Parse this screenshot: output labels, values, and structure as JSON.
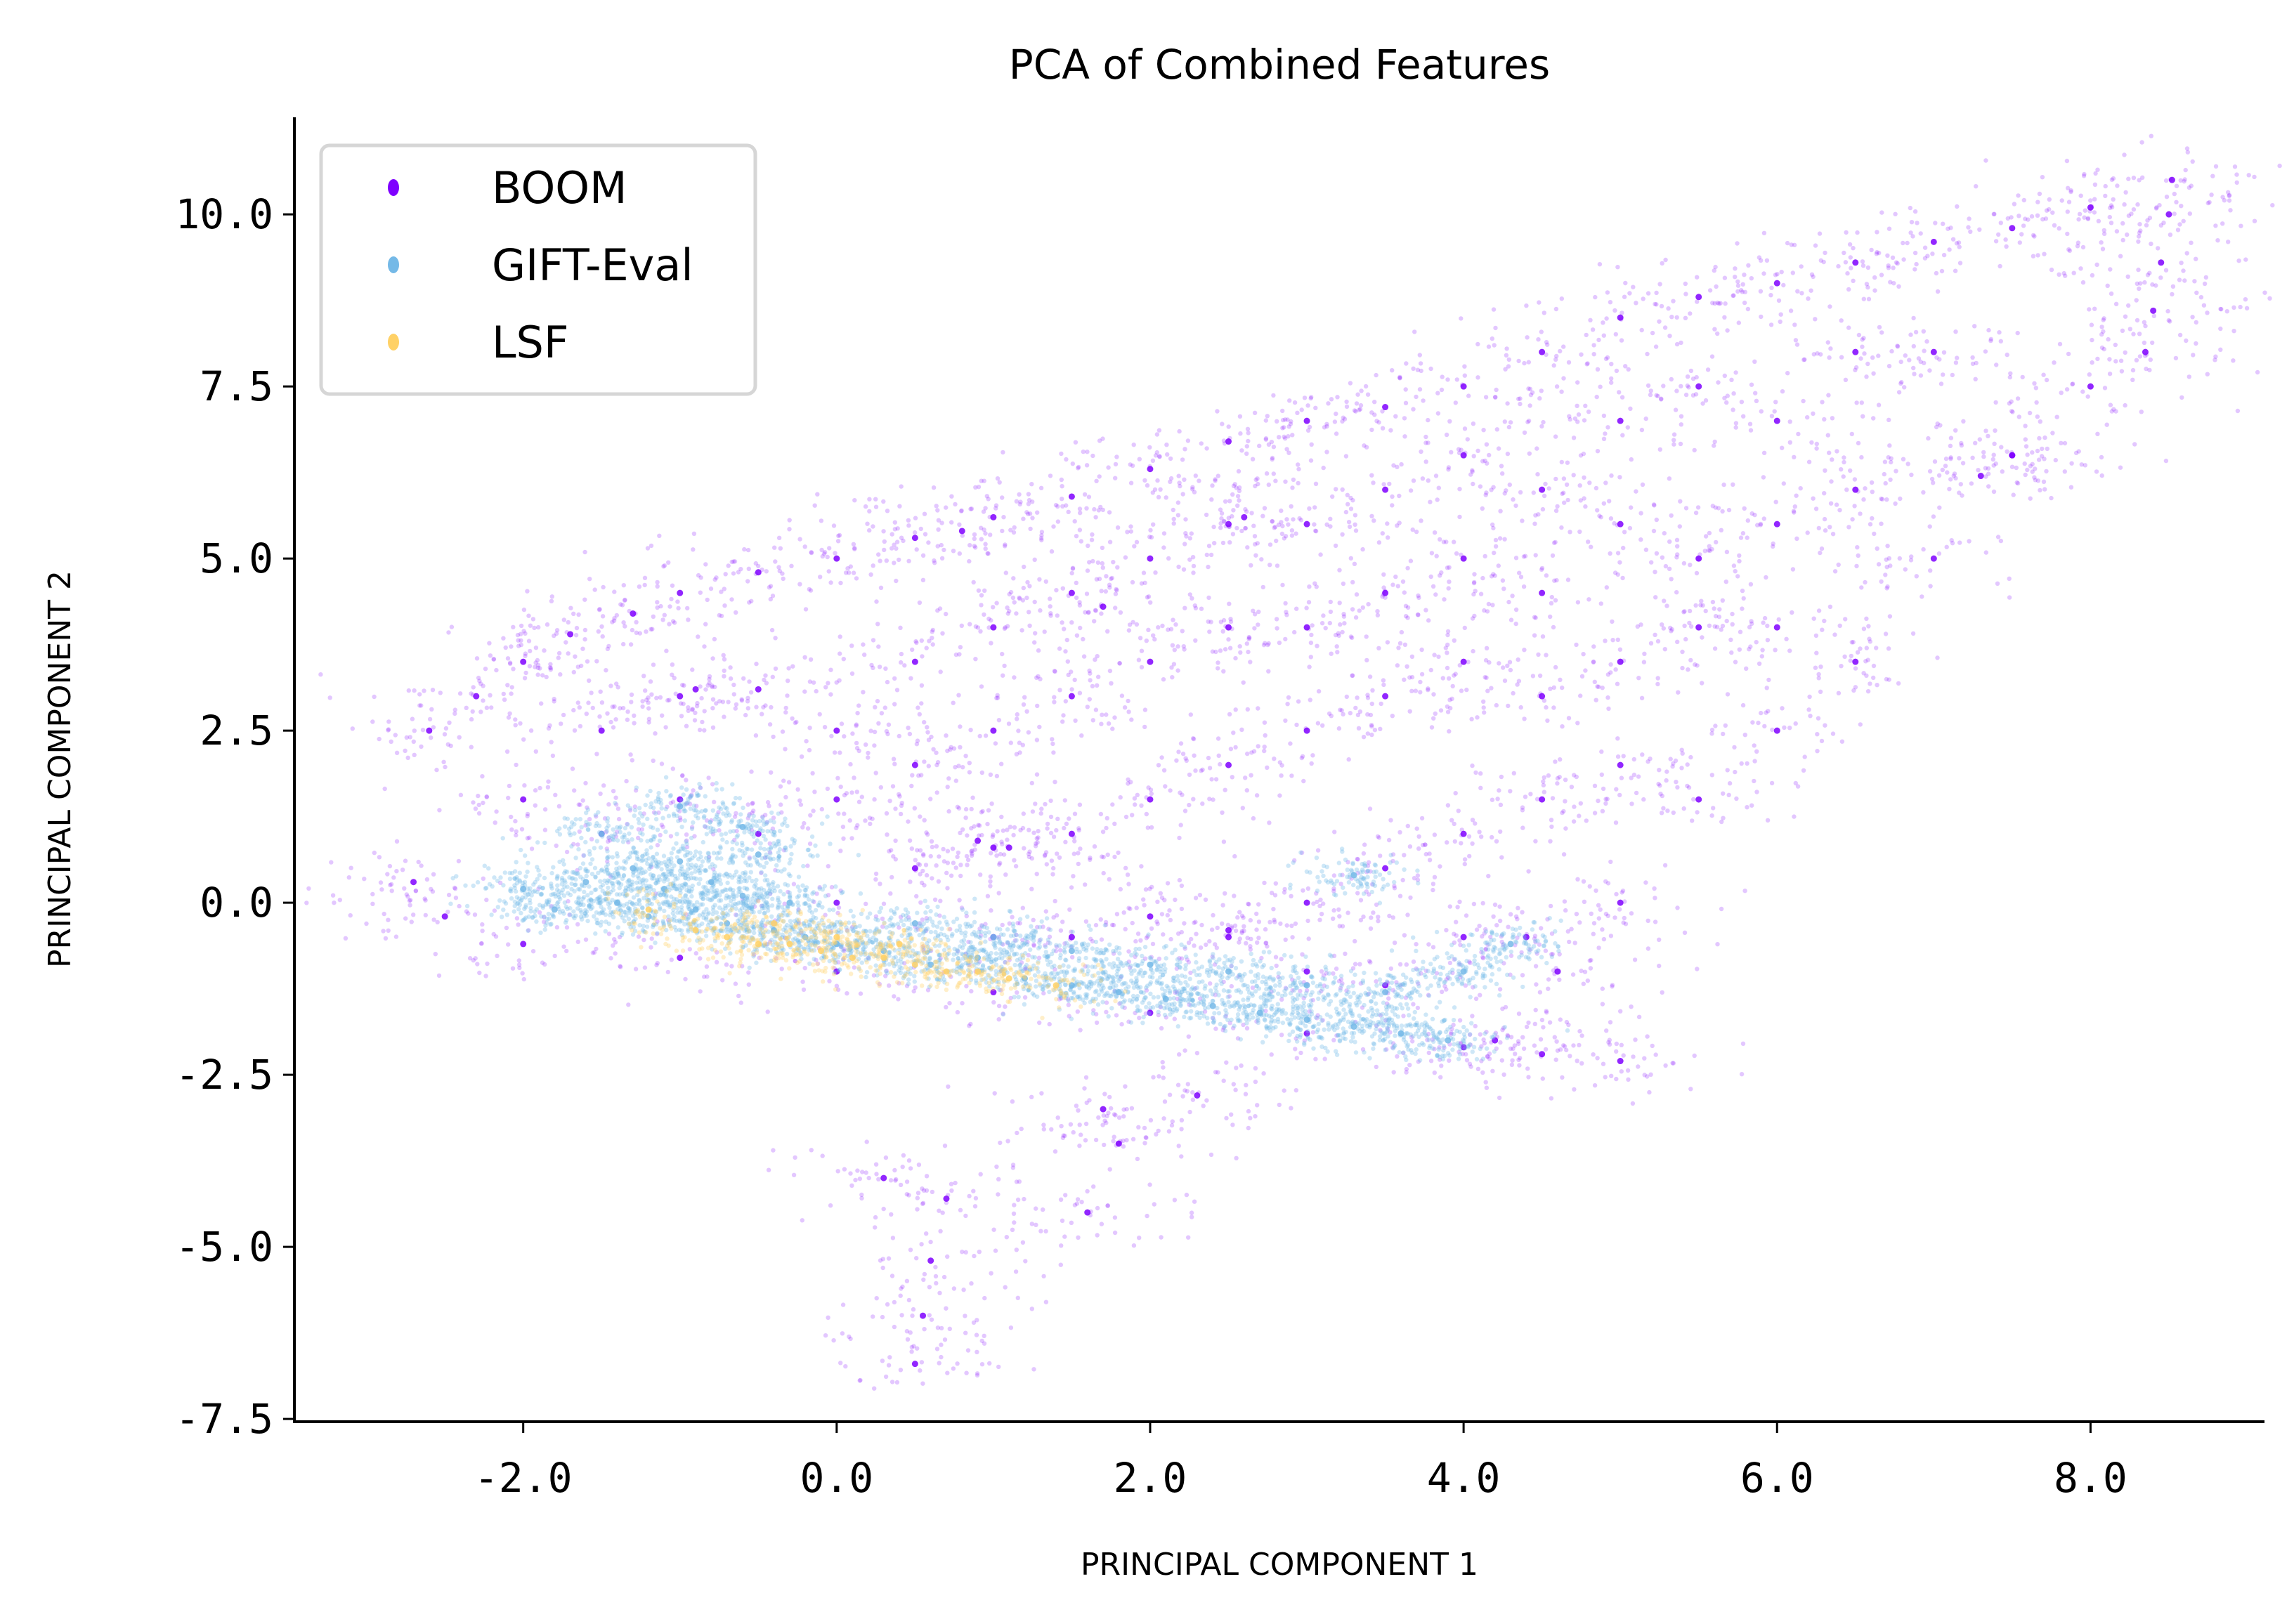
{
  "chart_data": {
    "type": "scatter",
    "title": "PCA of Combined Features",
    "xlabel": "PRINCIPAL COMPONENT 1",
    "ylabel": "PRINCIPAL COMPONENT 2",
    "xlim": [
      -3.46,
      9.11
    ],
    "ylim": [
      -7.54,
      11.41
    ],
    "xticks": [
      "-2.0",
      "0.0",
      "2.0",
      "4.0",
      "6.0",
      "8.0"
    ],
    "xtick_values": [
      -2,
      0,
      2,
      4,
      6,
      8
    ],
    "yticks": [
      "-7.5",
      "-5.0",
      "-2.5",
      "0.0",
      "2.5",
      "5.0",
      "7.5",
      "10.0"
    ],
    "ytick_values": [
      -7.5,
      -5,
      -2.5,
      0,
      2.5,
      5,
      7.5,
      10
    ],
    "grid": false,
    "legend_position": "top-left",
    "series": [
      {
        "name": "BOOM",
        "color": "#7f00ff",
        "points": [
          [
            -2.6,
            2.5
          ],
          [
            -2.3,
            3.0
          ],
          [
            -2.0,
            3.5
          ],
          [
            -1.7,
            3.9
          ],
          [
            -1.3,
            4.2
          ],
          [
            -1.0,
            4.5
          ],
          [
            -0.5,
            4.8
          ],
          [
            0.0,
            5.0
          ],
          [
            0.5,
            5.3
          ],
          [
            1.0,
            5.6
          ],
          [
            1.5,
            5.9
          ],
          [
            2.0,
            6.3
          ],
          [
            2.5,
            6.7
          ],
          [
            3.0,
            7.0
          ],
          [
            3.5,
            7.2
          ],
          [
            4.0,
            7.5
          ],
          [
            4.5,
            8.0
          ],
          [
            5.0,
            8.5
          ],
          [
            5.5,
            8.8
          ],
          [
            6.0,
            9.0
          ],
          [
            6.5,
            9.3
          ],
          [
            7.0,
            9.6
          ],
          [
            7.5,
            9.8
          ],
          [
            8.0,
            10.1
          ],
          [
            8.35,
            8.0
          ],
          [
            8.4,
            8.6
          ],
          [
            8.45,
            9.3
          ],
          [
            8.5,
            10.0
          ],
          [
            8.52,
            10.5
          ],
          [
            7.3,
            6.2
          ],
          [
            7.5,
            6.5
          ],
          [
            4.2,
            -2.0
          ],
          [
            4.6,
            -1.0
          ],
          [
            5.0,
            0.0
          ],
          [
            5.5,
            1.5
          ],
          [
            6.0,
            2.5
          ],
          [
            6.5,
            3.5
          ],
          [
            7.0,
            5.0
          ],
          [
            7.5,
            6.5
          ],
          [
            8.0,
            7.5
          ],
          [
            -2.7,
            0.3
          ],
          [
            -2.5,
            -0.2
          ],
          [
            -2.0,
            -0.6
          ],
          [
            -1.0,
            -0.8
          ],
          [
            0.0,
            -1.0
          ],
          [
            1.0,
            -1.3
          ],
          [
            2.0,
            -1.6
          ],
          [
            3.0,
            -1.9
          ],
          [
            4.0,
            -2.1
          ],
          [
            4.5,
            -2.2
          ],
          [
            5.0,
            -2.3
          ],
          [
            0.5,
            -6.7
          ],
          [
            0.55,
            -6.0
          ],
          [
            0.6,
            -5.2
          ],
          [
            0.7,
            -4.3
          ],
          [
            1.6,
            -4.5
          ],
          [
            1.8,
            -3.5
          ],
          [
            1.7,
            -3.0
          ],
          [
            2.3,
            -2.8
          ],
          [
            0.3,
            -4.0
          ],
          [
            -2.0,
            1.5
          ],
          [
            -1.5,
            2.5
          ],
          [
            -1.0,
            3.0
          ],
          [
            -0.5,
            3.1
          ],
          [
            0.0,
            2.5
          ],
          [
            0.5,
            3.5
          ],
          [
            1.0,
            4.0
          ],
          [
            1.5,
            4.5
          ],
          [
            2.0,
            5.0
          ],
          [
            2.5,
            5.5
          ],
          [
            3.0,
            5.5
          ],
          [
            3.5,
            6.0
          ],
          [
            4.0,
            6.5
          ],
          [
            4.5,
            6.0
          ],
          [
            5.0,
            7.0
          ],
          [
            5.5,
            7.5
          ],
          [
            6.0,
            7.0
          ],
          [
            6.5,
            8.0
          ],
          [
            7.0,
            8.0
          ],
          [
            -1.5,
            1.0
          ],
          [
            -1.0,
            1.5
          ],
          [
            -0.5,
            1.0
          ],
          [
            0.0,
            1.5
          ],
          [
            0.5,
            2.0
          ],
          [
            1.0,
            2.5
          ],
          [
            1.5,
            3.0
          ],
          [
            2.0,
            3.5
          ],
          [
            2.5,
            4.0
          ],
          [
            3.0,
            4.0
          ],
          [
            3.5,
            4.5
          ],
          [
            4.0,
            5.0
          ],
          [
            4.5,
            4.5
          ],
          [
            5.0,
            5.5
          ],
          [
            5.5,
            5.0
          ],
          [
            6.0,
            5.5
          ],
          [
            6.5,
            6.0
          ],
          [
            0.0,
            0.0
          ],
          [
            0.5,
            0.5
          ],
          [
            1.0,
            0.8
          ],
          [
            1.5,
            1.0
          ],
          [
            2.0,
            1.5
          ],
          [
            2.5,
            2.0
          ],
          [
            3.0,
            2.5
          ],
          [
            3.5,
            3.0
          ],
          [
            4.0,
            3.5
          ],
          [
            4.5,
            3.0
          ],
          [
            5.0,
            3.5
          ],
          [
            5.5,
            4.0
          ],
          [
            6.0,
            4.0
          ],
          [
            1.0,
            -0.5
          ],
          [
            1.5,
            -0.5
          ],
          [
            2.0,
            -0.2
          ],
          [
            2.5,
            -0.5
          ],
          [
            3.0,
            0.0
          ],
          [
            3.5,
            0.5
          ],
          [
            4.0,
            1.0
          ],
          [
            4.5,
            1.5
          ],
          [
            5.0,
            2.0
          ],
          [
            3.0,
            -1.0
          ],
          [
            3.5,
            -1.2
          ],
          [
            4.0,
            -0.5
          ],
          [
            4.4,
            -0.5
          ],
          [
            1.7,
            4.3
          ],
          [
            2.6,
            5.6
          ],
          [
            0.8,
            5.4
          ],
          [
            -0.9,
            3.1
          ],
          [
            0.9,
            0.9
          ],
          [
            2.5,
            -0.4
          ],
          [
            1.1,
            0.8
          ]
        ]
      },
      {
        "name": "GIFT-Eval",
        "color": "#74b9e7",
        "points": [
          [
            -2.0,
            0.2
          ],
          [
            -1.8,
            -0.1
          ],
          [
            -1.6,
            0.3
          ],
          [
            -1.4,
            0.0
          ],
          [
            -1.3,
            0.5
          ],
          [
            -1.2,
            -0.2
          ],
          [
            -1.1,
            0.2
          ],
          [
            -1.0,
            0.6
          ],
          [
            -0.9,
            -0.1
          ],
          [
            -0.8,
            0.3
          ],
          [
            -0.7,
            -0.3
          ],
          [
            -0.6,
            0.1
          ],
          [
            -0.5,
            0.7
          ],
          [
            -0.4,
            -0.4
          ],
          [
            -0.3,
            0.0
          ],
          [
            -0.2,
            -0.5
          ],
          [
            -1.5,
            1.0
          ],
          [
            -1.0,
            1.4
          ],
          [
            -0.6,
            1.1
          ],
          [
            0.0,
            -0.6
          ],
          [
            0.3,
            -0.7
          ],
          [
            0.6,
            -0.9
          ],
          [
            0.9,
            -0.8
          ],
          [
            1.2,
            -1.1
          ],
          [
            1.5,
            -1.2
          ],
          [
            1.8,
            -1.3
          ],
          [
            2.1,
            -1.4
          ],
          [
            2.4,
            -1.5
          ],
          [
            2.7,
            -1.6
          ],
          [
            3.0,
            -1.7
          ],
          [
            3.3,
            -1.8
          ],
          [
            3.6,
            -1.9
          ],
          [
            3.9,
            -2.0
          ],
          [
            0.5,
            -0.3
          ],
          [
            1.0,
            -0.5
          ],
          [
            1.5,
            -0.7
          ],
          [
            2.0,
            -0.9
          ],
          [
            2.5,
            -1.0
          ],
          [
            3.0,
            -1.2
          ],
          [
            3.5,
            -1.3
          ],
          [
            4.0,
            -1.0
          ],
          [
            4.3,
            -0.6
          ],
          [
            3.3,
            0.4
          ]
        ]
      },
      {
        "name": "LSF",
        "color": "#ffd166",
        "points": [
          [
            -0.9,
            -0.4
          ],
          [
            -0.7,
            -0.5
          ],
          [
            -0.5,
            -0.6
          ],
          [
            -0.3,
            -0.6
          ],
          [
            -0.1,
            -0.7
          ],
          [
            0.1,
            -0.8
          ],
          [
            0.3,
            -0.8
          ],
          [
            0.5,
            -0.9
          ],
          [
            0.7,
            -1.0
          ],
          [
            0.9,
            -1.0
          ],
          [
            1.1,
            -1.1
          ],
          [
            -0.4,
            -0.3
          ],
          [
            0.0,
            -0.5
          ],
          [
            0.4,
            -0.6
          ],
          [
            -1.2,
            -0.1
          ],
          [
            1.4,
            -1.2
          ]
        ]
      }
    ]
  }
}
